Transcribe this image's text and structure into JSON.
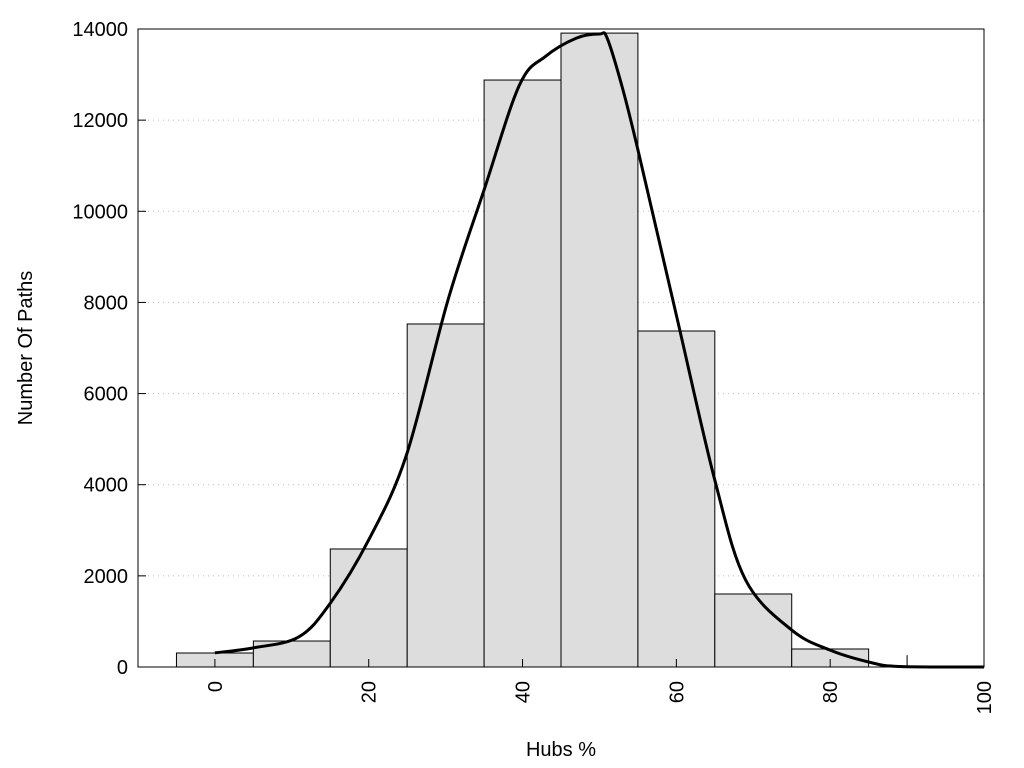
{
  "chart_data": {
    "type": "bar",
    "title": "",
    "xlabel": "Hubs %",
    "ylabel": "Number Of Paths",
    "xlim": [
      -10,
      100
    ],
    "ylim": [
      0,
      14000
    ],
    "grid": "horizontal dotted",
    "xticks": [
      "0",
      "20",
      "40",
      "60",
      "80",
      "100"
    ],
    "yticks": [
      "0",
      "2000",
      "4000",
      "6000",
      "8000",
      "10000",
      "12000",
      "14000"
    ],
    "bar_color": "#dddddd",
    "bars": [
      {
        "x0": -5,
        "x1": 5,
        "value": 307
      },
      {
        "x0": 5,
        "x1": 15,
        "value": 570
      },
      {
        "x0": 15,
        "x1": 25,
        "value": 2590
      },
      {
        "x0": 25,
        "x1": 35,
        "value": 7527
      },
      {
        "x0": 35,
        "x1": 45,
        "value": 12880
      },
      {
        "x0": 45,
        "x1": 55,
        "value": 13910
      },
      {
        "x0": 55,
        "x1": 65,
        "value": 7373
      },
      {
        "x0": 65,
        "x1": 75,
        "value": 1602
      },
      {
        "x0": 75,
        "x1": 85,
        "value": 395
      },
      {
        "x0": 90,
        "x1": 90,
        "value": 260
      }
    ],
    "curve": {
      "x": [
        0,
        5,
        10.9,
        15,
        20,
        24.9,
        30.3,
        35,
        39.6,
        43,
        47,
        50,
        51,
        53,
        55,
        60,
        65,
        69,
        75,
        80,
        85,
        89,
        100
      ],
      "y": [
        310,
        420,
        660,
        1400,
        2790,
        4650,
        8050,
        10470,
        12770,
        13400,
        13800,
        13890,
        13800,
        12700,
        11350,
        7720,
        4100,
        1910,
        810,
        370,
        110,
        10,
        0
      ]
    }
  }
}
